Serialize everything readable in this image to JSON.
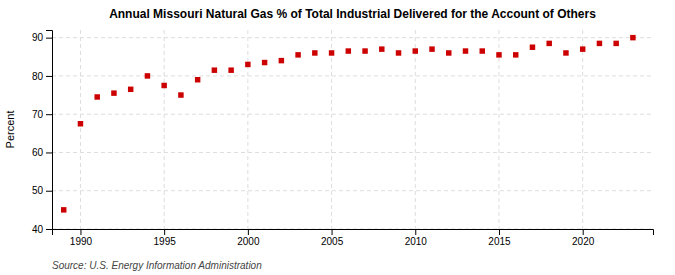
{
  "chart_data": {
    "type": "scatter",
    "title": "Annual Missouri Natural Gas % of Total Industrial Delivered for the Account of Others",
    "ylabel": "Percent",
    "source": "Source: U.S. Energy Information Administration",
    "x": [
      1989,
      1990,
      1991,
      1992,
      1993,
      1994,
      1995,
      1996,
      1997,
      1998,
      1999,
      2000,
      2001,
      2002,
      2003,
      2004,
      2005,
      2006,
      2007,
      2008,
      2009,
      2010,
      2011,
      2012,
      2013,
      2014,
      2015,
      2016,
      2017,
      2018,
      2019,
      2020,
      2021,
      2022,
      2023
    ],
    "values": [
      45.0,
      67.5,
      74.5,
      75.5,
      76.5,
      80.0,
      77.5,
      75.0,
      79.0,
      81.5,
      81.5,
      83.0,
      83.5,
      84.0,
      85.5,
      86.0,
      86.0,
      86.5,
      86.5,
      87.0,
      86.0,
      86.5,
      87.0,
      86.0,
      86.5,
      86.5,
      85.5,
      85.5,
      87.5,
      88.5,
      86.0,
      87.0,
      88.5,
      88.5,
      90.0
    ],
    "color": "#cc0000",
    "marker": "square",
    "xlim": [
      1988.3,
      2024.2
    ],
    "ylim": [
      40,
      92
    ],
    "xticks": [
      1990,
      1995,
      2000,
      2005,
      2010,
      2015,
      2020
    ],
    "yticks": [
      40,
      50,
      60,
      70,
      80,
      90
    ],
    "grid": true
  }
}
